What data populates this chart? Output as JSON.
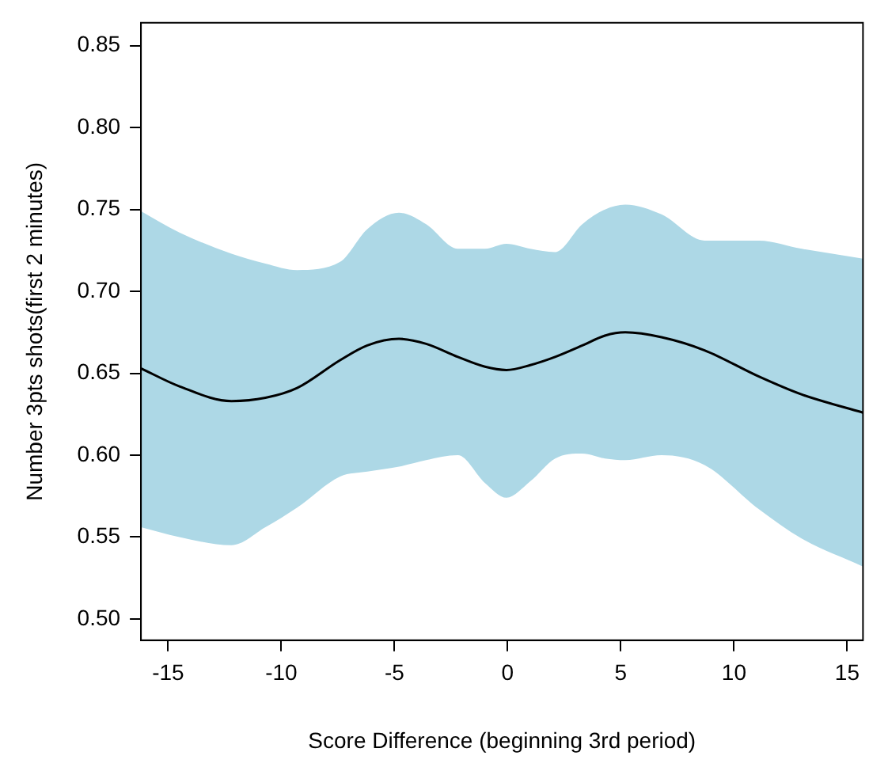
{
  "chart_data": {
    "type": "line",
    "xlabel": "Score Difference (beginning 3rd period)",
    "ylabel": "Number 3pts shots(first 2 minutes)",
    "x": [
      -16.2,
      -14.5,
      -12.2,
      -10.7,
      -9.3,
      -7.4,
      -6.2,
      -4.8,
      -3.6,
      -2.2,
      -1.0,
      -0.05,
      1.0,
      2.1,
      3.3,
      4.3,
      5.2,
      6.8,
      8.7,
      11.1,
      13.0,
      15.7
    ],
    "series": [
      {
        "color": "#000000",
        "values": [
          0.653,
          0.642,
          0.633,
          0.635,
          0.641,
          0.658,
          0.667,
          0.671,
          0.668,
          0.66,
          0.654,
          0.652,
          0.655,
          0.66,
          0.667,
          0.673,
          0.675,
          0.672,
          0.664,
          0.648,
          0.637,
          0.626
        ],
        "upper": [
          0.749,
          0.736,
          0.723,
          0.717,
          0.713,
          0.718,
          0.738,
          0.748,
          0.741,
          0.726,
          0.726,
          0.729,
          0.726,
          0.724,
          0.741,
          0.75,
          0.753,
          0.747,
          0.731,
          0.731,
          0.726,
          0.72
        ],
        "lower": [
          0.556,
          0.55,
          0.545,
          0.556,
          0.568,
          0.587,
          0.59,
          0.593,
          0.597,
          0.6,
          0.583,
          0.574,
          0.584,
          0.598,
          0.601,
          0.598,
          0.597,
          0.6,
          0.594,
          0.567,
          0.549,
          0.532
        ]
      }
    ],
    "xlim": [
      -16.2,
      15.7
    ],
    "xticks": [
      -15,
      -10,
      -5,
      0,
      5,
      10,
      15
    ],
    "ylim": [
      0.487,
      0.864
    ],
    "yticks": [
      {
        "value": 0.5,
        "label": "0.50"
      },
      0.55,
      {
        "value": 0.6,
        "label": "0.60"
      },
      0.65,
      {
        "value": 0.7,
        "label": "0.70"
      },
      0.75,
      {
        "value": 0.8,
        "label": "0.80"
      },
      0.85
    ],
    "grid": false,
    "legend": false,
    "marker": "none",
    "line_style": "solid"
  }
}
